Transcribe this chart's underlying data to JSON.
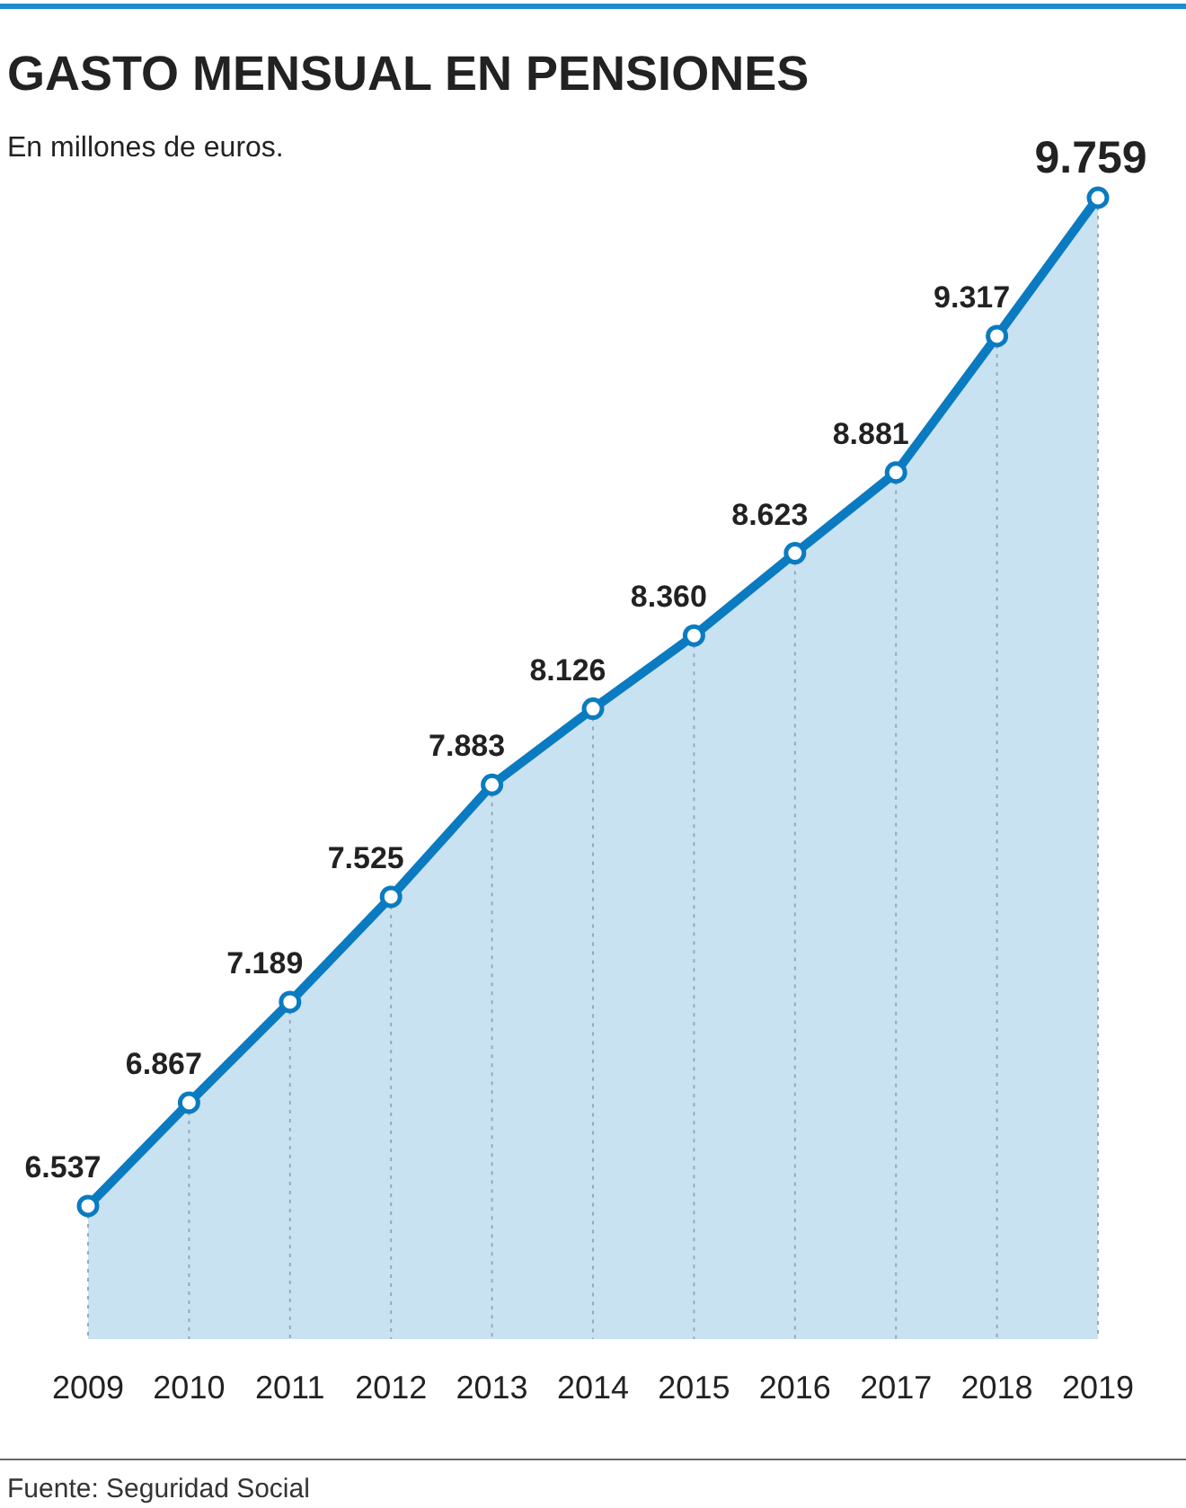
{
  "chart_data": {
    "type": "area",
    "title": "GASTO MENSUAL EN PENSIONES",
    "subtitle": "En millones de euros.",
    "annotations": [
      "Fuente: Seguridad Social"
    ],
    "categories": [
      "2009",
      "2010",
      "2011",
      "2012",
      "2013",
      "2014",
      "2015",
      "2016",
      "2017",
      "2018",
      "2019"
    ],
    "series": [
      {
        "color": "#0b7bc1",
        "values": [
          6537,
          6867,
          7189,
          7525,
          7883,
          8126,
          8360,
          8623,
          8881,
          9317,
          9759
        ],
        "value_labels": [
          "6.537",
          "6.867",
          "7.189",
          "7.525",
          "7.883",
          "8.126",
          "8.360",
          "8.623",
          "8.881",
          "9.317",
          "9.759"
        ]
      }
    ],
    "marker": "circle"
  }
}
